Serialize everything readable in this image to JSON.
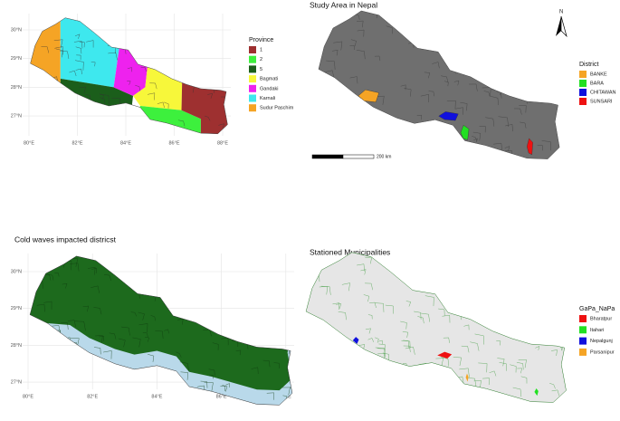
{
  "panels": [
    {
      "legend": {
        "title": "Province",
        "items": [
          {
            "label": "1",
            "color": "#9e3030"
          },
          {
            "label": "2",
            "color": "#3df03d"
          },
          {
            "label": "5",
            "color": "#1b5e1b"
          },
          {
            "label": "Bagmati",
            "color": "#f7f73a"
          },
          {
            "label": "Gandaki",
            "color": "#ee22ee"
          },
          {
            "label": "Karnali",
            "color": "#3ee8ee"
          },
          {
            "label": "Sudur Paschim",
            "color": "#f5a425"
          }
        ]
      },
      "xticks": [
        {
          "value": 80,
          "label": "80°E"
        },
        {
          "value": 82,
          "label": "82°E"
        },
        {
          "value": 84,
          "label": "84°E"
        },
        {
          "value": 86,
          "label": "86°E"
        },
        {
          "value": 88,
          "label": "88°E"
        }
      ],
      "yticks": [
        {
          "value": 30,
          "label": "30°N"
        },
        {
          "value": 29,
          "label": "29°N"
        },
        {
          "value": 28,
          "label": "28°N"
        },
        {
          "value": 27,
          "label": "27°N"
        }
      ]
    },
    {
      "title": "Study Area in Nepal",
      "legend": {
        "title": "District",
        "items": [
          {
            "label": "BANKE",
            "color": "#f5a425"
          },
          {
            "label": "BARA",
            "color": "#22e022"
          },
          {
            "label": "CHITAWAN",
            "color": "#1010dd"
          },
          {
            "label": "SUNSARI",
            "color": "#ee1111"
          }
        ]
      },
      "scale_bar": "200 km",
      "north": "N"
    },
    {
      "title": "Cold waves impacted districst",
      "xticks": [
        {
          "value": 80,
          "label": "80°E"
        },
        {
          "value": 82,
          "label": "82°E"
        },
        {
          "value": 84,
          "label": "84°E"
        },
        {
          "value": 86,
          "label": "86°E"
        },
        {
          "value": 88,
          "label": "88°E"
        }
      ],
      "yticks": [
        {
          "value": 30,
          "label": "30°N"
        },
        {
          "value": 29,
          "label": "29°N"
        },
        {
          "value": 28,
          "label": "28°N"
        },
        {
          "value": 27,
          "label": "27°N"
        }
      ]
    },
    {
      "title": "Stationed Municipalities",
      "legend": {
        "title": "GaPa_NaPa",
        "items": [
          {
            "label": "Bharatpur",
            "color": "#ee1111"
          },
          {
            "label": "Itahari",
            "color": "#22e022"
          },
          {
            "label": "Nepalgunj",
            "color": "#1010dd"
          },
          {
            "label": "Parsanipur",
            "color": "#f5a425"
          }
        ]
      }
    }
  ]
}
